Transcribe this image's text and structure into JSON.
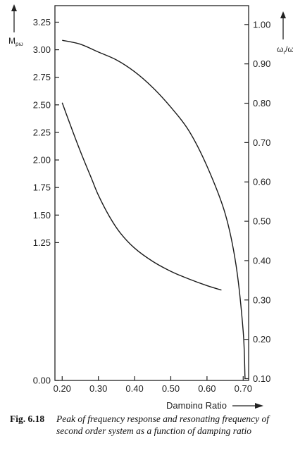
{
  "chart_data": {
    "type": "line",
    "xlabel": "Damping Ratio",
    "xlim": [
      0.18,
      0.715
    ],
    "x_ticks": [
      "0.20",
      "0.30",
      "0.40",
      "0.50",
      "0.60",
      "0.70"
    ],
    "x_tick_values": [
      0.2,
      0.3,
      0.4,
      0.5,
      0.6,
      0.7
    ],
    "y_left": {
      "label": "M",
      "label_sub": "pω",
      "ylim": [
        0.0,
        3.4
      ],
      "ticks": [
        "0.00",
        "1.25",
        "1.50",
        "1.75",
        "2.00",
        "2.25",
        "2.50",
        "2.75",
        "3.00",
        "3.25"
      ],
      "tick_values": [
        0.0,
        1.25,
        1.5,
        1.75,
        2.0,
        2.25,
        2.5,
        2.75,
        3.0,
        3.25
      ]
    },
    "y_right": {
      "label": "ω",
      "label_sub": "r",
      "label_tail": "/ω",
      "ylim": [
        0.0955,
        1.048
      ],
      "ticks": [
        "1.00",
        "0.90",
        "0.80",
        "0.70",
        "0.60",
        "0.50",
        "0.40",
        "0.30",
        "0.20",
        "0.10"
      ],
      "tick_values": [
        1.0,
        0.9,
        0.8,
        0.7,
        0.6,
        0.5,
        0.4,
        0.3,
        0.2,
        0.1
      ]
    },
    "series": [
      {
        "axis": "left",
        "x": [
          0.2,
          0.22,
          0.25,
          0.28,
          0.3,
          0.33,
          0.36,
          0.4,
          0.45,
          0.5,
          0.55,
          0.6,
          0.64
        ],
        "values": [
          2.52,
          2.34,
          2.08,
          1.84,
          1.68,
          1.49,
          1.34,
          1.2,
          1.08,
          0.99,
          0.92,
          0.86,
          0.82
        ]
      },
      {
        "axis": "right",
        "x": [
          0.2,
          0.25,
          0.3,
          0.35,
          0.4,
          0.45,
          0.5,
          0.55,
          0.6,
          0.65,
          0.68,
          0.7,
          0.705
        ],
        "values": [
          0.96,
          0.95,
          0.93,
          0.91,
          0.88,
          0.84,
          0.79,
          0.73,
          0.64,
          0.52,
          0.39,
          0.22,
          0.1
        ]
      }
    ]
  },
  "caption": {
    "figure_number": "Fig. 6.18",
    "line1": "Peak of frequency response and resonating frequency of",
    "line2": "second order system as a function of damping ratio"
  }
}
